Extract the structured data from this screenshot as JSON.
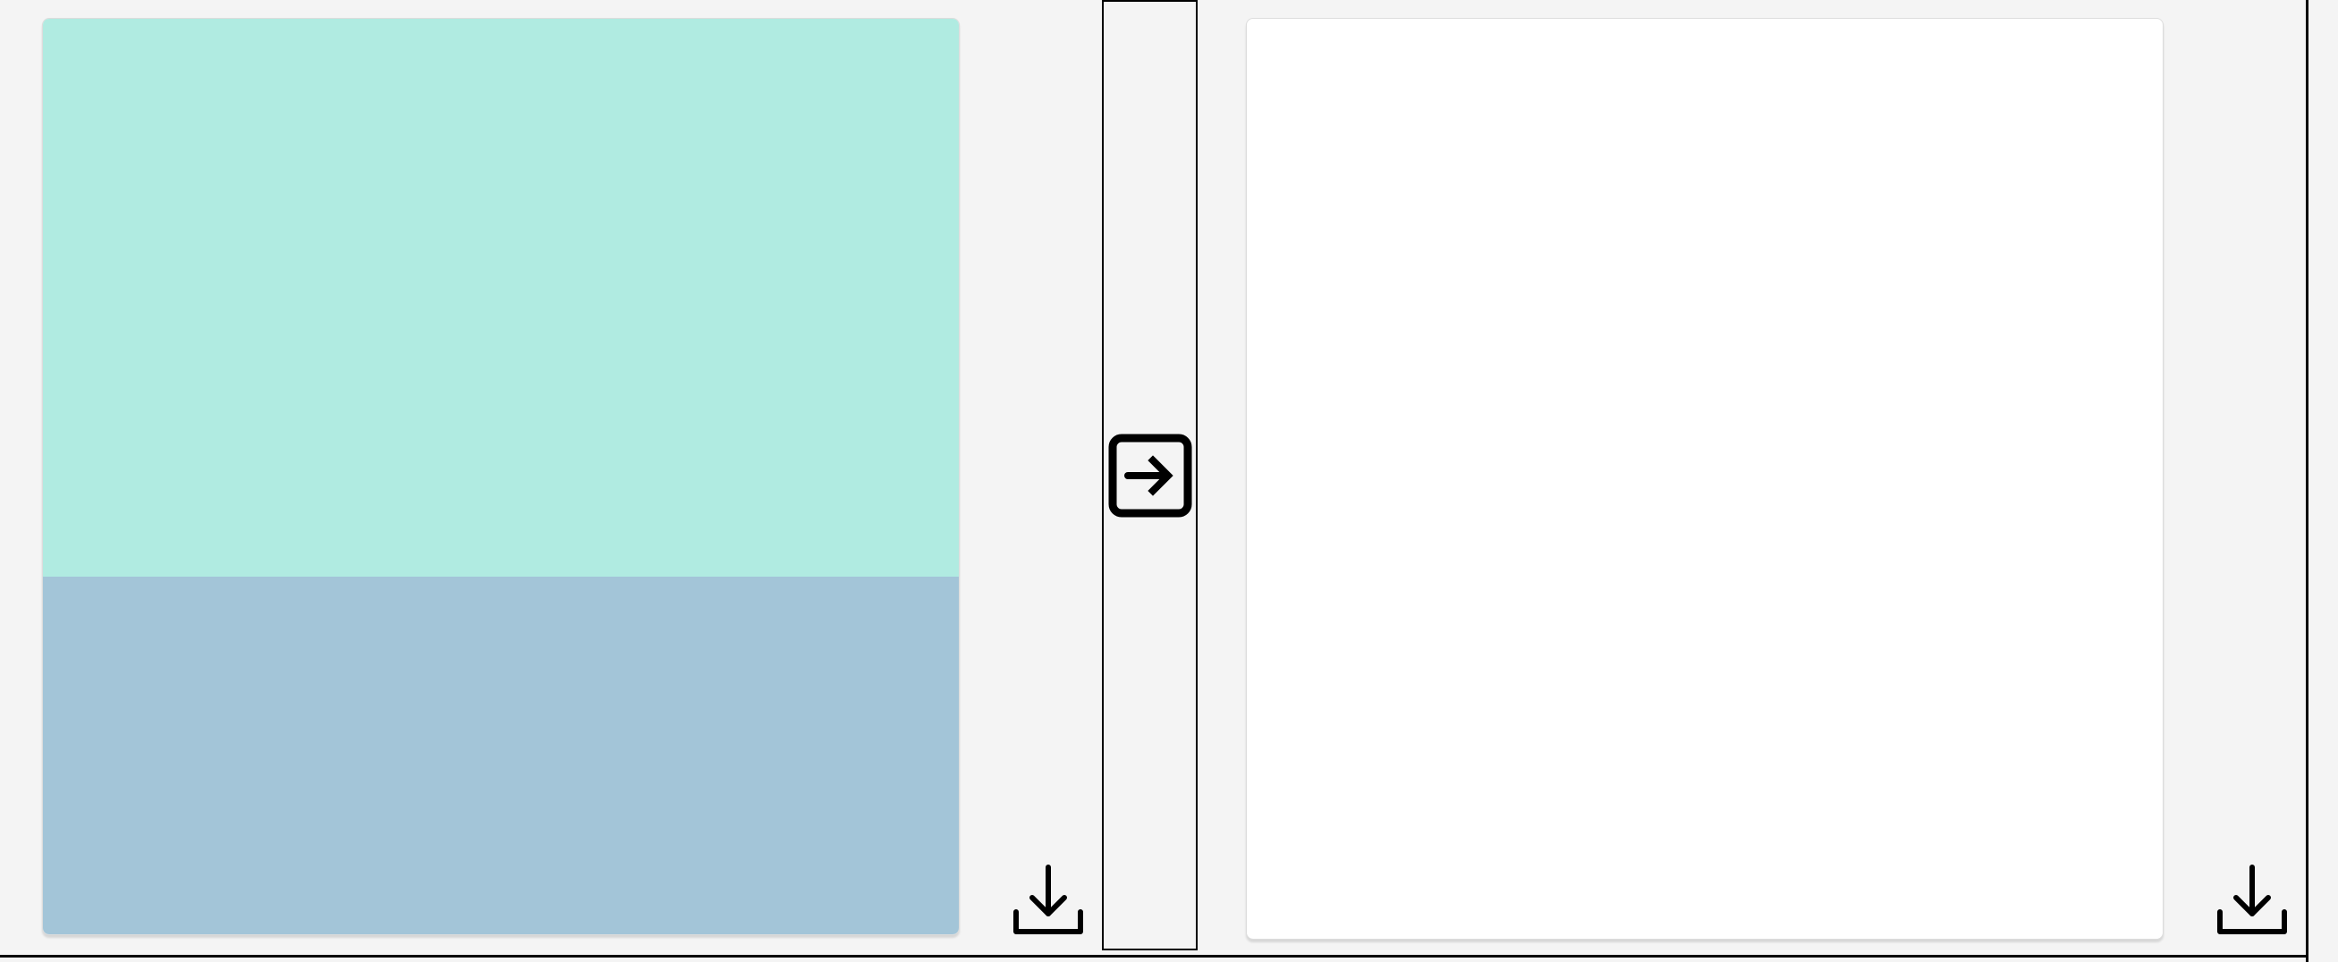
{
  "colors": {
    "page_background": "#f4f4f4",
    "source_top_band": "#b0ebe1",
    "source_bottom_band": "#a3c5d8",
    "result_background": "#ffffff",
    "icon_stroke": "#000000"
  },
  "icons": {
    "left_download": "download-icon",
    "transfer": "arrow-right-square-icon",
    "right_download": "download-icon"
  }
}
